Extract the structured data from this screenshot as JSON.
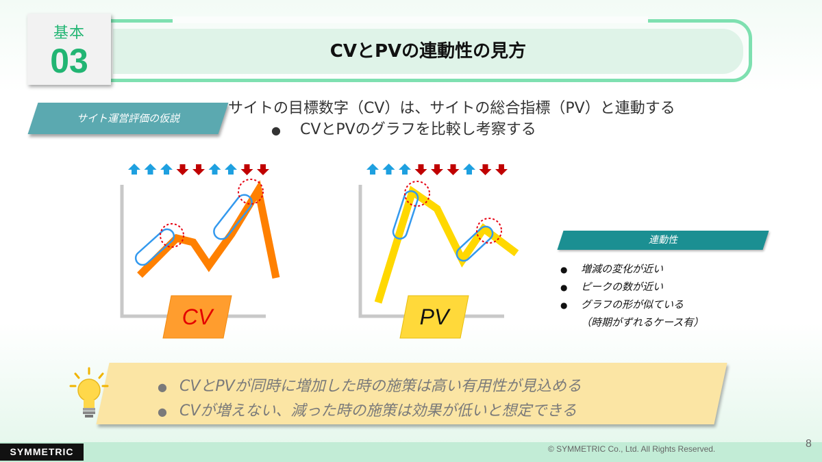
{
  "header": {
    "badge_label": "基本",
    "badge_number": "03",
    "title": "CVとPVの連動性の見方"
  },
  "hypothesis": {
    "tag": "サイト運営評価の仮説",
    "main": "サイトの目標数字（CV）は、サイトの総合指標（PV）と連動する",
    "bullet_symbol": "●",
    "sub": "CVとPVのグラフを比較し考察する"
  },
  "charts": {
    "cv": {
      "label": "CV",
      "color": "#ff8000",
      "label_bg": "#ff9d2e",
      "label_text_color": "#e40000",
      "arrows": [
        "up",
        "up",
        "up",
        "down",
        "down",
        "up",
        "up",
        "down",
        "down"
      ]
    },
    "pv": {
      "label": "PV",
      "color": "#ffd800",
      "label_bg": "#ffd93a",
      "label_text_color": "#111111",
      "arrows": [
        "up",
        "up",
        "up",
        "down",
        "down",
        "down",
        "up",
        "down",
        "down"
      ]
    },
    "arrow_colors": {
      "up": "#1ea0e0",
      "down": "#c00000"
    }
  },
  "panel": {
    "title": "連動性",
    "bullet_symbol": "●",
    "items": [
      "増減の変化が近い",
      "ピークの数が近い",
      "グラフの形が似ている"
    ],
    "note": "（時期がずれるケース有）"
  },
  "bottom": {
    "bullet_symbol": "●",
    "lines": [
      "CVとPVが同時に増加した時の施策は高い有用性が見込める",
      "CVが増えない、減った時の施策は効果が低いと想定できる"
    ],
    "icon": "lightbulb-icon"
  },
  "footer": {
    "logo": "SYMMETRIC",
    "copyright": "© SYMMETRIC Co., Ltd. All Rights Reserved.",
    "page": "8"
  }
}
